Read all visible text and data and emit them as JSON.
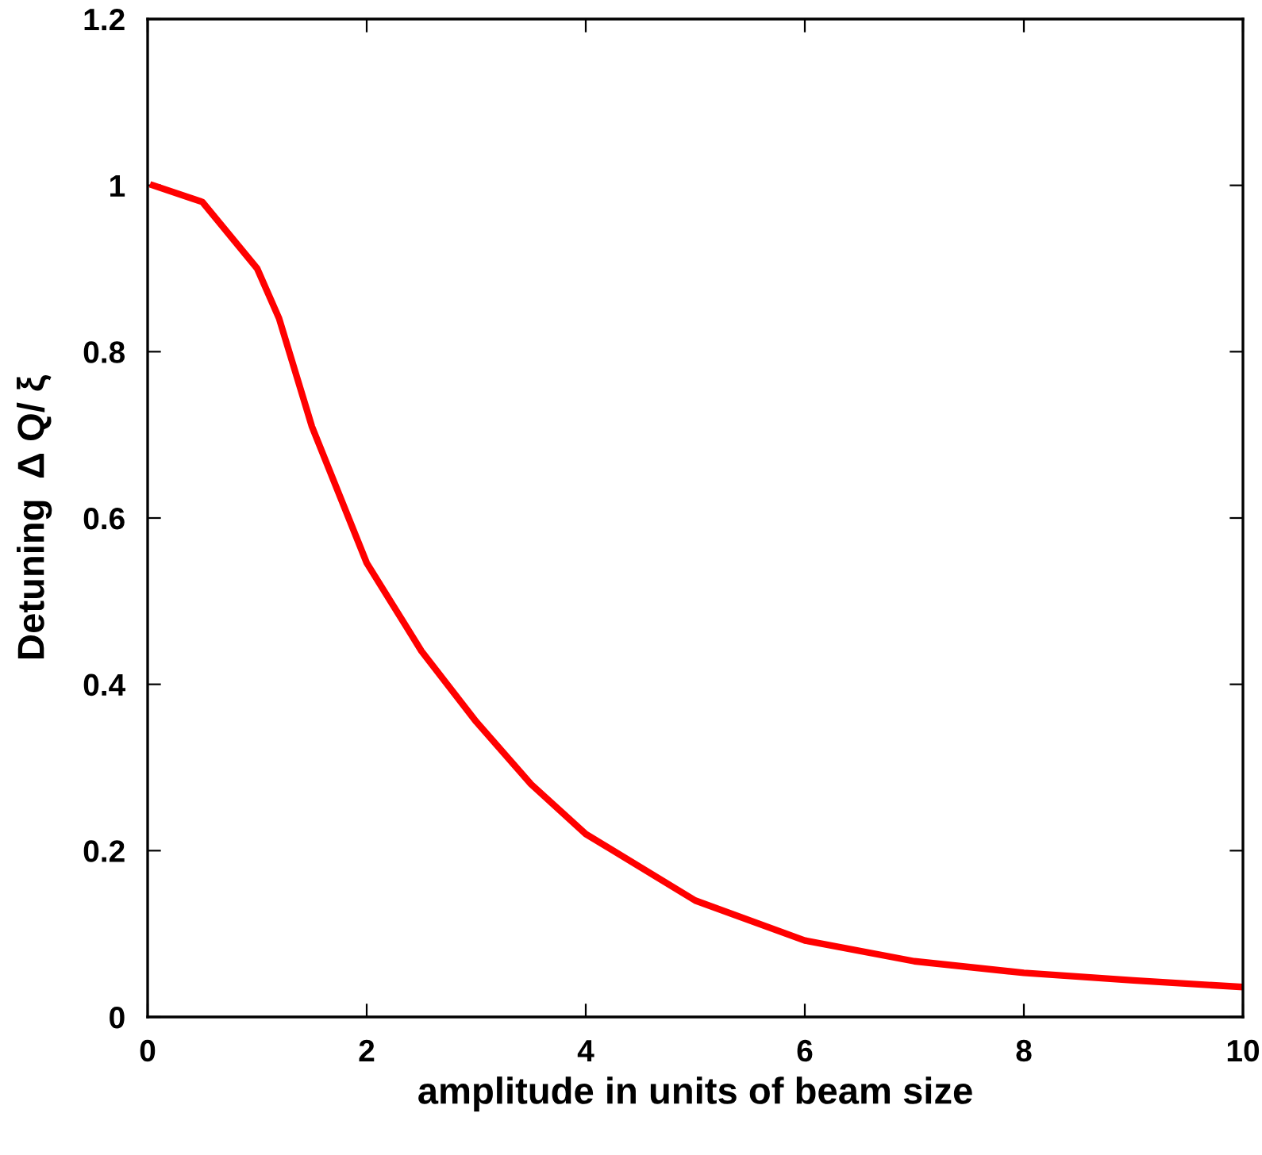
{
  "chart_data": {
    "type": "line",
    "xlabel": "amplitude in units of beam size",
    "ylabel": "Detuning  Δ Q/ ξ",
    "x": [
      0.05,
      0.5,
      1,
      1.2,
      1.5,
      2,
      2.5,
      3,
      3.5,
      4,
      5,
      6,
      7,
      8,
      9,
      10
    ],
    "series": [
      {
        "color": "#ff0000",
        "values": [
          1.0,
          0.98,
          0.9,
          0.84,
          0.71,
          0.546,
          0.44,
          0.355,
          0.28,
          0.22,
          0.14,
          0.092,
          0.067,
          0.053,
          0.044,
          0.036
        ]
      }
    ],
    "xlim": [
      0,
      10
    ],
    "xticks": [
      0,
      2,
      4,
      6,
      8,
      10
    ],
    "ylim": [
      0,
      1.2
    ],
    "yticks": [
      0,
      0.2,
      0.4,
      0.6,
      0.8,
      1,
      1.2
    ],
    "grid": false,
    "line_style": "solid",
    "marker": "none"
  }
}
